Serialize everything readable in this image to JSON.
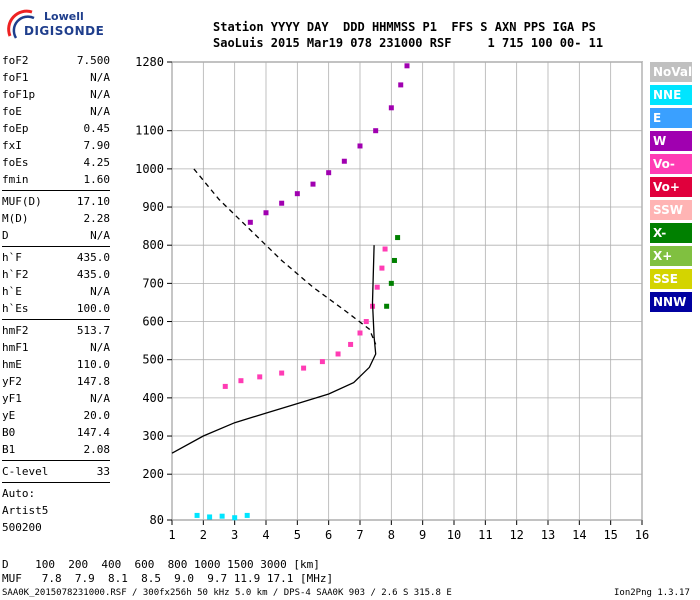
{
  "logo": {
    "line1": "Lowell",
    "line2": "DIGISONDE"
  },
  "header": {
    "line1": "Station YYYY DAY  DDD HHMMSS P1  FFS S AXN PPS IGA PS",
    "line2": "SaoLuis 2015 Mar19 078 231000 RSF     1 715 100 00- 11"
  },
  "params": {
    "group1": [
      {
        "label": "foF2",
        "value": "7.500"
      },
      {
        "label": "foF1",
        "value": "N/A"
      },
      {
        "label": "foF1p",
        "value": "N/A"
      },
      {
        "label": "foE",
        "value": "N/A"
      },
      {
        "label": "foEp",
        "value": "0.45"
      },
      {
        "label": "fxI",
        "value": "7.90"
      },
      {
        "label": "foEs",
        "value": "4.25"
      },
      {
        "label": "fmin",
        "value": "1.60"
      }
    ],
    "group2": [
      {
        "label": "MUF(D)",
        "value": "17.10"
      },
      {
        "label": "M(D)",
        "value": "2.28"
      },
      {
        "label": "D",
        "value": "N/A"
      }
    ],
    "group3": [
      {
        "label": "h`F",
        "value": "435.0"
      },
      {
        "label": "h`F2",
        "value": "435.0"
      },
      {
        "label": "h`E",
        "value": "N/A"
      },
      {
        "label": "h`Es",
        "value": "100.0"
      }
    ],
    "group4": [
      {
        "label": "hmF2",
        "value": "513.7"
      },
      {
        "label": "hmF1",
        "value": "N/A"
      },
      {
        "label": "hmE",
        "value": "110.0"
      },
      {
        "label": "yF2",
        "value": "147.8"
      },
      {
        "label": "yF1",
        "value": "N/A"
      },
      {
        "label": "yE",
        "value": "20.0"
      },
      {
        "label": "B0",
        "value": "147.4"
      },
      {
        "label": "B1",
        "value": "2.08"
      }
    ],
    "clevel": {
      "label": "C-level",
      "value": "33"
    },
    "auto_lines": [
      "Auto:",
      "Artist5",
      "500200"
    ]
  },
  "legend": [
    {
      "label": "NoVal",
      "color": "#c0c0c0"
    },
    {
      "label": "NNE",
      "color": "#00e5ff"
    },
    {
      "label": "E",
      "color": "#3aa0ff"
    },
    {
      "label": "W",
      "color": "#a000b0"
    },
    {
      "label": "Vo-",
      "color": "#ff3cb4"
    },
    {
      "label": "Vo+",
      "color": "#e0003c"
    },
    {
      "label": "SSW",
      "color": "#ffb4b4"
    },
    {
      "label": "X-",
      "color": "#008000"
    },
    {
      "label": "X+",
      "color": "#80c040"
    },
    {
      "label": "SSE",
      "color": "#d4d400"
    },
    {
      "label": "NNW",
      "color": "#0000a0"
    }
  ],
  "footer": {
    "d_line": "D    100  200  400  600  800 1000 1500 3000 [km]",
    "muf_line": "MUF   7.8  7.9  8.1  8.5  9.0  9.7 11.9 17.1 [MHz]",
    "info": "SAA0K_2015078231000.RSF / 300fx256h 50 kHz 5.0 km / DPS-4 SAA0K 903 / 2.6 S 315.8 E",
    "version": "Ion2Png 1.3.17"
  },
  "chart_data": {
    "type": "scatter",
    "title": "",
    "xlabel": "",
    "ylabel": "",
    "xlim": [
      1,
      16
    ],
    "ylim": [
      80,
      1280
    ],
    "x_ticks": [
      "1",
      "2",
      "3",
      "4",
      "5",
      "6",
      "7",
      "8",
      "9",
      "10",
      "11",
      "12",
      "13",
      "14",
      "15",
      "16"
    ],
    "y_ticks": [
      "80",
      "200",
      "300",
      "400",
      "500",
      "600",
      "700",
      "800",
      "900",
      "1000",
      "1100",
      "1280"
    ],
    "series": [
      {
        "points": [
          [
            2.7,
            430
          ],
          [
            3.2,
            445
          ],
          [
            3.8,
            455
          ],
          [
            4.5,
            465
          ],
          [
            5.2,
            478
          ],
          [
            5.8,
            495
          ],
          [
            6.3,
            515
          ],
          [
            6.7,
            540
          ],
          [
            7.0,
            570
          ],
          [
            7.2,
            600
          ],
          [
            7.4,
            640
          ],
          [
            7.55,
            690
          ],
          [
            7.7,
            740
          ],
          [
            7.8,
            790
          ]
        ],
        "color": "#ff3cb4"
      },
      {
        "points": [
          [
            7.85,
            640
          ],
          [
            8.0,
            700
          ],
          [
            8.1,
            760
          ],
          [
            8.2,
            820
          ]
        ],
        "color": "#008000"
      },
      {
        "points": [
          [
            3.5,
            860
          ],
          [
            4.0,
            885
          ],
          [
            4.5,
            910
          ],
          [
            5.0,
            935
          ],
          [
            5.5,
            960
          ],
          [
            6.0,
            990
          ],
          [
            6.5,
            1020
          ],
          [
            7.0,
            1060
          ],
          [
            7.5,
            1100
          ],
          [
            8.0,
            1160
          ],
          [
            8.3,
            1220
          ],
          [
            8.5,
            1270
          ]
        ],
        "color": "#a000b0"
      },
      {
        "points": [
          [
            1.8,
            92
          ],
          [
            2.2,
            88
          ],
          [
            2.6,
            90
          ],
          [
            3.0,
            86
          ],
          [
            3.4,
            92
          ]
        ],
        "color": "#00e5ff"
      }
    ],
    "lines": [
      {
        "points": [
          [
            1.0,
            255
          ],
          [
            2.0,
            300
          ],
          [
            3.0,
            335
          ],
          [
            4.0,
            360
          ],
          [
            5.0,
            385
          ],
          [
            6.0,
            410
          ],
          [
            6.8,
            440
          ],
          [
            7.3,
            480
          ],
          [
            7.5,
            515
          ],
          [
            7.45,
            560
          ],
          [
            7.4,
            650
          ],
          [
            7.45,
            800
          ]
        ],
        "color": "#000000",
        "dash": false
      },
      {
        "points": [
          [
            1.7,
            1000
          ],
          [
            2.5,
            920
          ],
          [
            3.5,
            840
          ],
          [
            4.5,
            760
          ],
          [
            5.5,
            690
          ],
          [
            6.5,
            630
          ],
          [
            7.3,
            580
          ],
          [
            7.5,
            540
          ]
        ],
        "color": "#000000",
        "dash": true
      }
    ]
  }
}
